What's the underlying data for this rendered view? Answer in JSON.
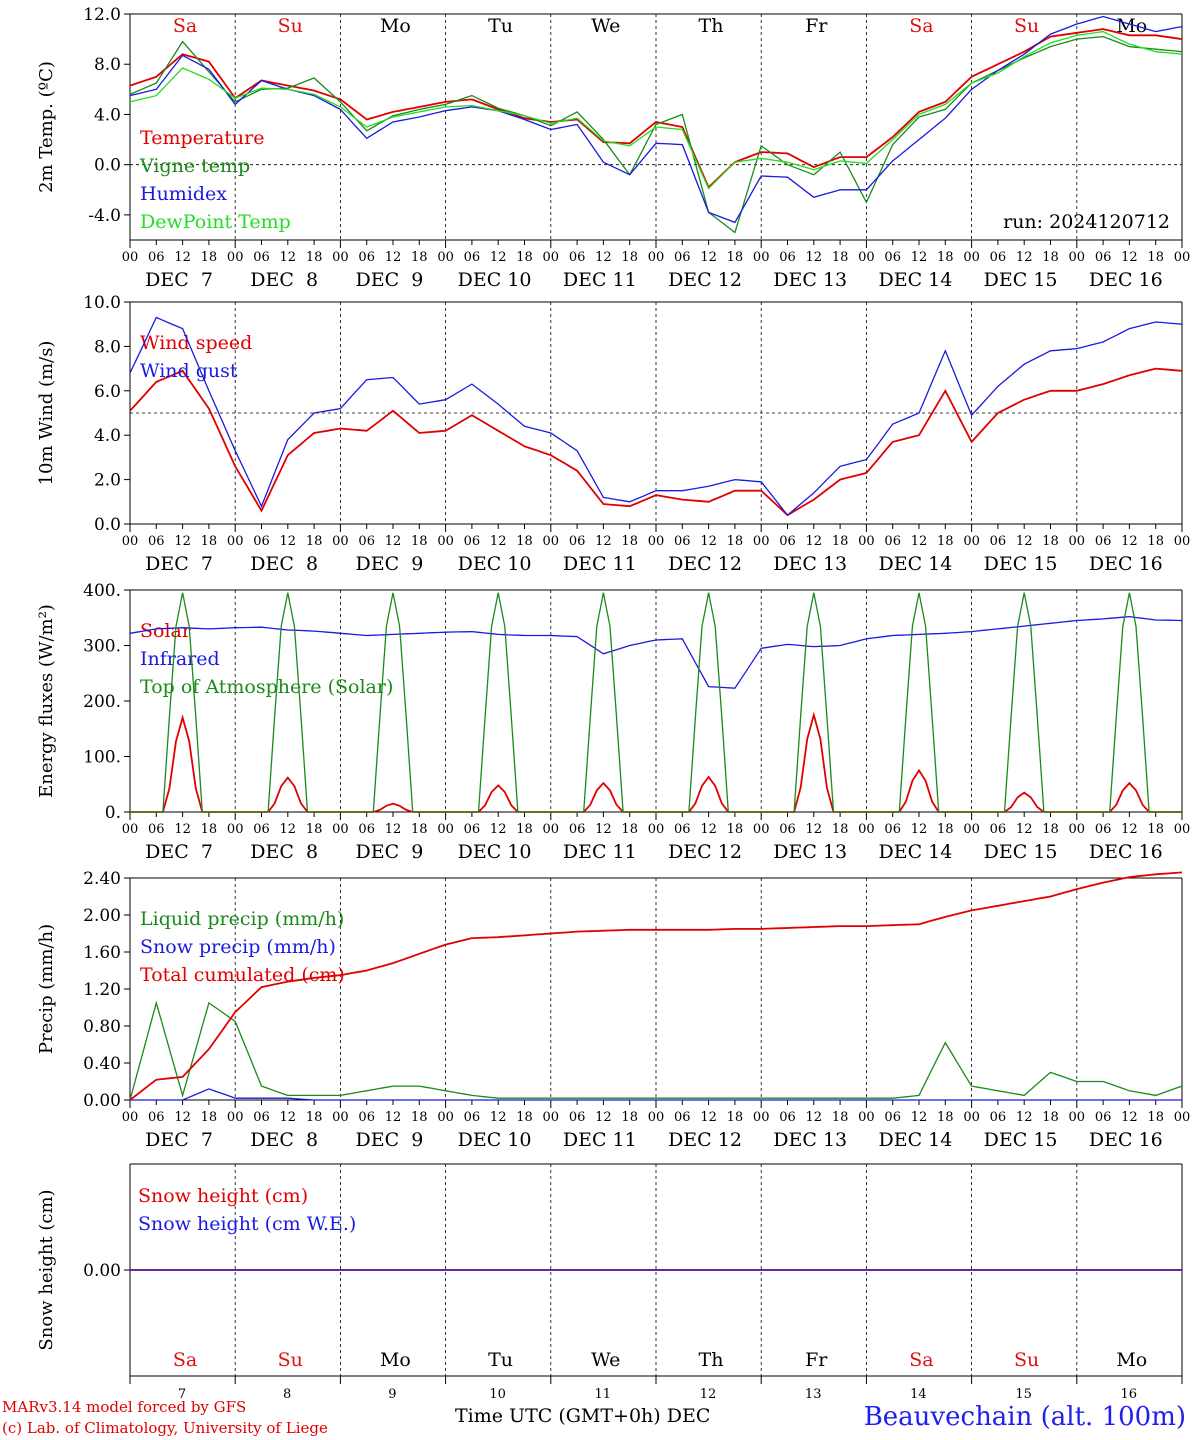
{
  "footer": {
    "credit_line1": "MARv3.14 model forced by GFS",
    "credit_line2": "(c) Lab. of Climatology, University of Liege",
    "station": "Beauvechain (alt. 100m)",
    "x_title": "Time UTC (GMT+0h) DEC"
  },
  "x_axis": {
    "hour_ticks": [
      "00",
      "06",
      "12",
      "18"
    ],
    "days": [
      "DEC  7",
      "DEC  8",
      "DEC  9",
      "DEC 10",
      "DEC 11",
      "DEC 12",
      "DEC 13",
      "DEC 14",
      "DEC 15",
      "DEC 16"
    ],
    "day_numbers": [
      "7",
      "8",
      "9",
      "10",
      "11",
      "12",
      "13",
      "14",
      "15",
      "16"
    ],
    "weekdays": [
      "Sa",
      "Su",
      "Mo",
      "Tu",
      "We",
      "Th",
      "Fr",
      "Sa",
      "Su",
      "Mo"
    ],
    "weekday_colors": [
      "#e01010",
      "#e01010",
      "#000000",
      "#000000",
      "#000000",
      "#000000",
      "#000000",
      "#e01010",
      "#e01010",
      "#000000"
    ]
  },
  "chart_data": [
    {
      "type": "line",
      "ylabel": "2m Temp. (ºC)",
      "ylim": [
        -6,
        12
      ],
      "yticks": [
        "12.0",
        "8.0",
        "4.0",
        "0.0",
        "-4.0"
      ],
      "ytick_values": [
        12,
        8,
        4,
        0,
        -4
      ],
      "ref_line": 0,
      "annotation": "run: 2024120712",
      "x_hours": [
        0,
        6,
        12,
        18,
        24,
        30,
        36,
        42,
        48,
        54,
        60,
        66,
        72,
        78,
        84,
        90,
        96,
        102,
        108,
        114,
        120,
        126,
        132,
        138,
        144,
        150,
        156,
        162,
        168,
        174,
        180,
        186,
        192,
        198,
        204,
        210,
        216,
        222,
        228,
        234,
        240
      ],
      "series": [
        {
          "name": "Temperature",
          "color": "#e00000",
          "values": [
            6.3,
            7.0,
            8.8,
            8.2,
            5.3,
            6.7,
            6.3,
            5.9,
            5.2,
            3.6,
            4.2,
            4.6,
            5.0,
            5.2,
            4.4,
            3.7,
            3.4,
            3.6,
            1.8,
            1.7,
            3.4,
            3.0,
            -1.8,
            0.2,
            1.0,
            0.9,
            -0.2,
            0.6,
            0.6,
            2.2,
            4.2,
            5.0,
            7.0,
            8.0,
            9.0,
            10.2,
            10.5,
            10.8,
            10.3,
            10.3,
            10.0
          ]
        },
        {
          "name": "Vigne temp",
          "color": "#1a8a1a",
          "values": [
            5.6,
            6.5,
            9.8,
            7.4,
            5.0,
            6.0,
            6.1,
            6.9,
            5.0,
            2.7,
            3.9,
            4.4,
            4.8,
            5.5,
            4.5,
            3.9,
            3.1,
            4.2,
            2.0,
            -0.8,
            3.2,
            4.0,
            -3.8,
            -5.4,
            1.5,
            0.0,
            -0.8,
            1.0,
            -3.0,
            1.6,
            3.8,
            4.4,
            6.5,
            7.5,
            8.5,
            9.4,
            10.0,
            10.2,
            9.4,
            9.2,
            9.0
          ]
        },
        {
          "name": "Humidex",
          "color": "#1a1ae0",
          "values": [
            5.5,
            6.0,
            8.7,
            7.6,
            4.8,
            6.7,
            6.0,
            5.5,
            4.4,
            2.1,
            3.4,
            3.8,
            4.3,
            4.6,
            4.3,
            3.6,
            2.8,
            3.2,
            0.2,
            -0.8,
            1.7,
            1.6,
            -3.8,
            -4.6,
            -0.9,
            -1.0,
            -2.6,
            -2.0,
            -2.0,
            0.3,
            2.0,
            3.7,
            6.0,
            7.5,
            8.8,
            10.4,
            11.2,
            11.8,
            11.2,
            10.6,
            11.0
          ]
        },
        {
          "name": "DewPoint Temp",
          "color": "#22dd22",
          "values": [
            5.0,
            5.5,
            7.7,
            6.8,
            5.3,
            6.1,
            6.0,
            5.6,
            4.6,
            3.0,
            3.8,
            4.2,
            4.6,
            4.7,
            4.3,
            3.9,
            3.3,
            3.7,
            1.9,
            1.5,
            3.0,
            2.8,
            -1.9,
            0.2,
            0.5,
            0.2,
            -0.4,
            0.3,
            0.1,
            2.0,
            4.0,
            4.8,
            6.5,
            7.3,
            8.6,
            9.7,
            10.3,
            10.6,
            9.6,
            9.0,
            8.8
          ]
        }
      ]
    },
    {
      "type": "line",
      "ylabel": "10m Wind (m/s)",
      "ylim": [
        0,
        10
      ],
      "yticks": [
        "10.0",
        "8.0",
        "6.0",
        "4.0",
        "2.0",
        "0.0"
      ],
      "ytick_values": [
        10,
        8,
        6,
        4,
        2,
        0
      ],
      "ref_line": 5,
      "x_hours": [
        0,
        6,
        12,
        18,
        24,
        30,
        36,
        42,
        48,
        54,
        60,
        66,
        72,
        78,
        84,
        90,
        96,
        102,
        108,
        114,
        120,
        126,
        132,
        138,
        144,
        150,
        156,
        162,
        168,
        174,
        180,
        186,
        192,
        198,
        204,
        210,
        216,
        222,
        228,
        234,
        240
      ],
      "series": [
        {
          "name": "Wind speed",
          "color": "#e00000",
          "values": [
            5.1,
            6.4,
            6.9,
            5.2,
            2.6,
            0.6,
            3.1,
            4.1,
            4.3,
            4.2,
            5.1,
            4.1,
            4.2,
            4.9,
            4.2,
            3.5,
            3.1,
            2.4,
            0.9,
            0.8,
            1.3,
            1.1,
            1.0,
            1.5,
            1.5,
            0.4,
            1.1,
            2.0,
            2.3,
            3.7,
            4.0,
            6.0,
            3.7,
            5.0,
            5.6,
            6.0,
            6.0,
            6.3,
            6.7,
            7.0,
            6.9
          ]
        },
        {
          "name": "Wind gust",
          "color": "#1a1ae0",
          "values": [
            6.8,
            9.3,
            8.8,
            6.0,
            3.3,
            0.8,
            3.8,
            5.0,
            5.2,
            6.5,
            6.6,
            5.4,
            5.6,
            6.3,
            5.4,
            4.4,
            4.1,
            3.3,
            1.2,
            1.0,
            1.5,
            1.5,
            1.7,
            2.0,
            1.9,
            0.4,
            1.4,
            2.6,
            2.9,
            4.5,
            5.0,
            7.8,
            4.9,
            6.2,
            7.2,
            7.8,
            7.9,
            8.2,
            8.8,
            9.1,
            9.0
          ]
        }
      ]
    },
    {
      "type": "line",
      "ylabel": "Energy fluxes (W/m²)",
      "ylim": [
        0,
        400
      ],
      "yticks": [
        "400.",
        "300.",
        "200.",
        "100.",
        "0."
      ],
      "ytick_values": [
        400,
        300,
        200,
        100,
        0
      ],
      "solar_peaks": [
        170,
        62,
        15,
        48,
        52,
        63,
        175,
        75,
        35,
        52
      ],
      "toa_peak": 395,
      "x_hours": [
        0,
        6,
        12,
        18,
        24,
        30,
        36,
        42,
        48,
        54,
        60,
        66,
        72,
        78,
        84,
        90,
        96,
        102,
        108,
        114,
        120,
        126,
        132,
        138,
        144,
        150,
        156,
        162,
        168,
        174,
        180,
        186,
        192,
        198,
        204,
        210,
        216,
        222,
        228,
        234,
        240
      ],
      "series": [
        {
          "name": "Solar",
          "color": "#e00000",
          "values": []
        },
        {
          "name": "Infrared",
          "color": "#1a1ae0",
          "values": [
            322,
            330,
            332,
            330,
            332,
            333,
            328,
            326,
            322,
            318,
            320,
            322,
            324,
            325,
            320,
            318,
            318,
            316,
            285,
            300,
            310,
            312,
            226,
            223,
            295,
            302,
            298,
            300,
            312,
            318,
            320,
            322,
            325,
            330,
            335,
            340,
            345,
            348,
            352,
            346,
            345
          ]
        },
        {
          "name": "Top of Atmosphere (Solar)",
          "color": "#1a8a1a",
          "values": []
        }
      ]
    },
    {
      "type": "line",
      "ylabel": "Precip (mm/h)",
      "ylim": [
        0,
        2.4
      ],
      "yticks": [
        "2.40",
        "2.00",
        "1.60",
        "1.20",
        "0.80",
        "0.40",
        "0.00"
      ],
      "ytick_values": [
        2.4,
        2.0,
        1.6,
        1.2,
        0.8,
        0.4,
        0
      ],
      "x_hours": [
        0,
        6,
        12,
        18,
        24,
        30,
        36,
        42,
        48,
        54,
        60,
        66,
        72,
        78,
        84,
        90,
        96,
        102,
        108,
        114,
        120,
        126,
        132,
        138,
        144,
        150,
        156,
        162,
        168,
        174,
        180,
        186,
        192,
        198,
        204,
        210,
        216,
        222,
        228,
        234,
        240
      ],
      "series": [
        {
          "name": "Liquid precip (mm/h)",
          "color": "#1a8a1a",
          "values": [
            0.0,
            1.05,
            0.05,
            1.05,
            0.85,
            0.15,
            0.05,
            0.05,
            0.05,
            0.1,
            0.15,
            0.15,
            0.1,
            0.05,
            0.02,
            0.02,
            0.02,
            0.02,
            0.02,
            0.02,
            0.02,
            0.02,
            0.02,
            0.02,
            0.02,
            0.02,
            0.02,
            0.02,
            0.02,
            0.02,
            0.05,
            0.62,
            0.15,
            0.1,
            0.05,
            0.3,
            0.2,
            0.2,
            0.1,
            0.05,
            0.15
          ]
        },
        {
          "name": "Snow precip (mm/h)",
          "color": "#1a1ae0",
          "values": [
            0,
            0,
            0,
            0.12,
            0.02,
            0.02,
            0.02,
            0,
            0,
            0,
            0,
            0,
            0,
            0,
            0,
            0,
            0,
            0,
            0,
            0,
            0,
            0,
            0,
            0,
            0,
            0,
            0,
            0,
            0,
            0,
            0,
            0,
            0,
            0,
            0,
            0,
            0,
            0,
            0,
            0,
            0
          ]
        },
        {
          "name": "Total cumulated (cm)",
          "color": "#e00000",
          "values": [
            0.0,
            0.22,
            0.25,
            0.55,
            0.95,
            1.22,
            1.28,
            1.32,
            1.35,
            1.4,
            1.48,
            1.58,
            1.68,
            1.75,
            1.76,
            1.78,
            1.8,
            1.82,
            1.83,
            1.84,
            1.84,
            1.84,
            1.84,
            1.85,
            1.85,
            1.86,
            1.87,
            1.88,
            1.88,
            1.89,
            1.9,
            1.98,
            2.05,
            2.1,
            2.15,
            2.2,
            2.28,
            2.35,
            2.41,
            2.44,
            2.46
          ]
        }
      ]
    },
    {
      "type": "line",
      "ylabel": "Snow height (cm)",
      "ylim": [
        -1,
        1
      ],
      "yticks": [
        "0.00"
      ],
      "ytick_values": [
        0
      ],
      "x_hours": [
        0,
        240
      ],
      "series": [
        {
          "name": "Snow height (cm)",
          "color": "#e00000",
          "values": [
            0,
            0
          ]
        },
        {
          "name": "Snow height (cm W.E.)",
          "color": "#1a1ae0",
          "values": [
            0,
            0
          ]
        }
      ]
    }
  ]
}
